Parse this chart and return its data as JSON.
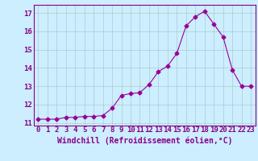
{
  "x": [
    0,
    1,
    2,
    3,
    4,
    5,
    6,
    7,
    8,
    9,
    10,
    11,
    12,
    13,
    14,
    15,
    16,
    17,
    18,
    19,
    20,
    21,
    22,
    23
  ],
  "y": [
    11.2,
    11.2,
    11.2,
    11.3,
    11.3,
    11.35,
    11.35,
    11.4,
    11.8,
    12.5,
    12.6,
    12.65,
    13.1,
    13.8,
    14.1,
    14.8,
    16.3,
    16.8,
    17.1,
    16.4,
    15.7,
    13.9,
    13.0,
    13.0
  ],
  "line_color": "#990099",
  "marker": "D",
  "marker_size": 2.5,
  "bg_color": "#cceeff",
  "grid_color": "#aacccc",
  "xlabel": "Windchill (Refroidissement éolien,°C)",
  "ylabel": "",
  "ylim": [
    10.85,
    17.45
  ],
  "xlim": [
    -0.5,
    23.5
  ],
  "yticks": [
    11,
    12,
    13,
    14,
    15,
    16,
    17
  ],
  "xticks": [
    0,
    1,
    2,
    3,
    4,
    5,
    6,
    7,
    8,
    9,
    10,
    11,
    12,
    13,
    14,
    15,
    16,
    17,
    18,
    19,
    20,
    21,
    22,
    23
  ],
  "xlabel_fontsize": 7.0,
  "tick_fontsize": 6.5,
  "label_color": "#880088",
  "spine_color": "#880088"
}
